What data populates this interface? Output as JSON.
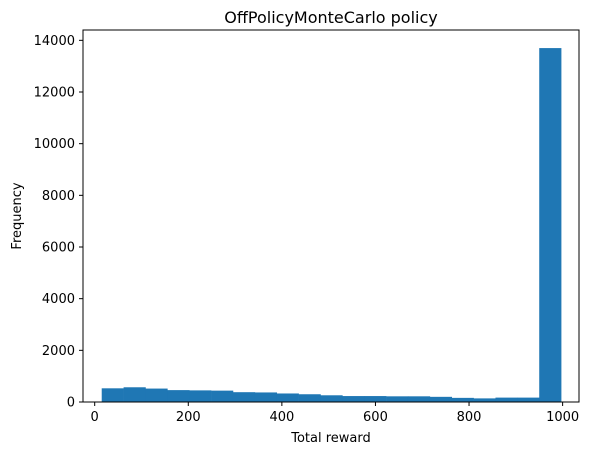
{
  "chart_data": {
    "type": "bar",
    "title": "OffPolicyMonteCarlo policy",
    "xlabel": "Total reward",
    "ylabel": "Frequency",
    "xlim": [
      -25,
      1035
    ],
    "ylim": [
      0,
      14400
    ],
    "bar_color": "#1f77b4",
    "bins": {
      "start": 15,
      "width": 46.75,
      "values": [
        530,
        570,
        520,
        460,
        450,
        440,
        380,
        370,
        330,
        300,
        260,
        230,
        230,
        220,
        220,
        200,
        160,
        140,
        170,
        170,
        13700
      ]
    },
    "x_ticks": [
      0,
      200,
      400,
      600,
      800,
      1000
    ],
    "x_tick_labels": [
      "0",
      "200",
      "400",
      "600",
      "800",
      "1000"
    ],
    "y_ticks": [
      0,
      2000,
      4000,
      6000,
      8000,
      10000,
      12000,
      14000
    ],
    "y_tick_labels": [
      "0",
      "2000",
      "4000",
      "6000",
      "8000",
      "10000",
      "12000",
      "14000"
    ],
    "grid": false,
    "legend": "none"
  }
}
